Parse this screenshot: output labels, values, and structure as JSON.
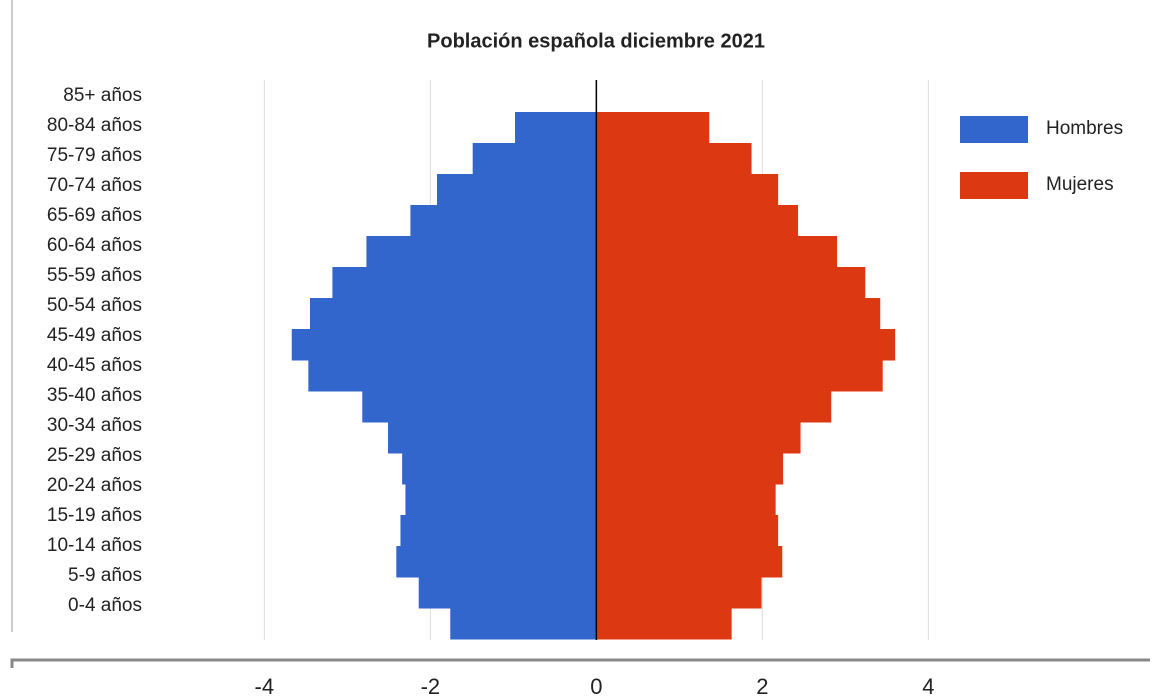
{
  "chart_data": {
    "type": "pyramid",
    "title": "Población española diciembre 2021",
    "categories": [
      "85+ años",
      "80-84 años",
      "75-79 años",
      "70-74 años",
      "65-69 años",
      "60-64 años",
      "55-59 años",
      "50-54 años",
      "45-49 años",
      "40-45 años",
      "35-40 años",
      "30-34 años",
      "25-29 años",
      "20-24 años",
      "15-19 años",
      "10-14 años",
      "5-9 años",
      "0-4 años"
    ],
    "series": [
      {
        "name": "Hombres",
        "color": "#3366cc",
        "values": [
          null,
          -0.98,
          -1.49,
          -1.92,
          -2.24,
          -2.77,
          -3.18,
          -3.45,
          -3.67,
          -3.47,
          -2.82,
          -2.51,
          -2.34,
          -2.3,
          -2.36,
          -2.41,
          -2.14,
          -1.76
        ]
      },
      {
        "name": "Mujeres",
        "color": "#dc3912",
        "values": [
          null,
          1.36,
          1.87,
          2.19,
          2.43,
          2.9,
          3.24,
          3.42,
          3.6,
          3.45,
          2.83,
          2.46,
          2.25,
          2.16,
          2.19,
          2.24,
          1.99,
          1.63
        ]
      }
    ],
    "xlim": [
      -7.04,
      6.67
    ],
    "xticks": [
      -4,
      -2,
      0,
      2,
      4
    ],
    "grid": true,
    "legend": "right"
  }
}
